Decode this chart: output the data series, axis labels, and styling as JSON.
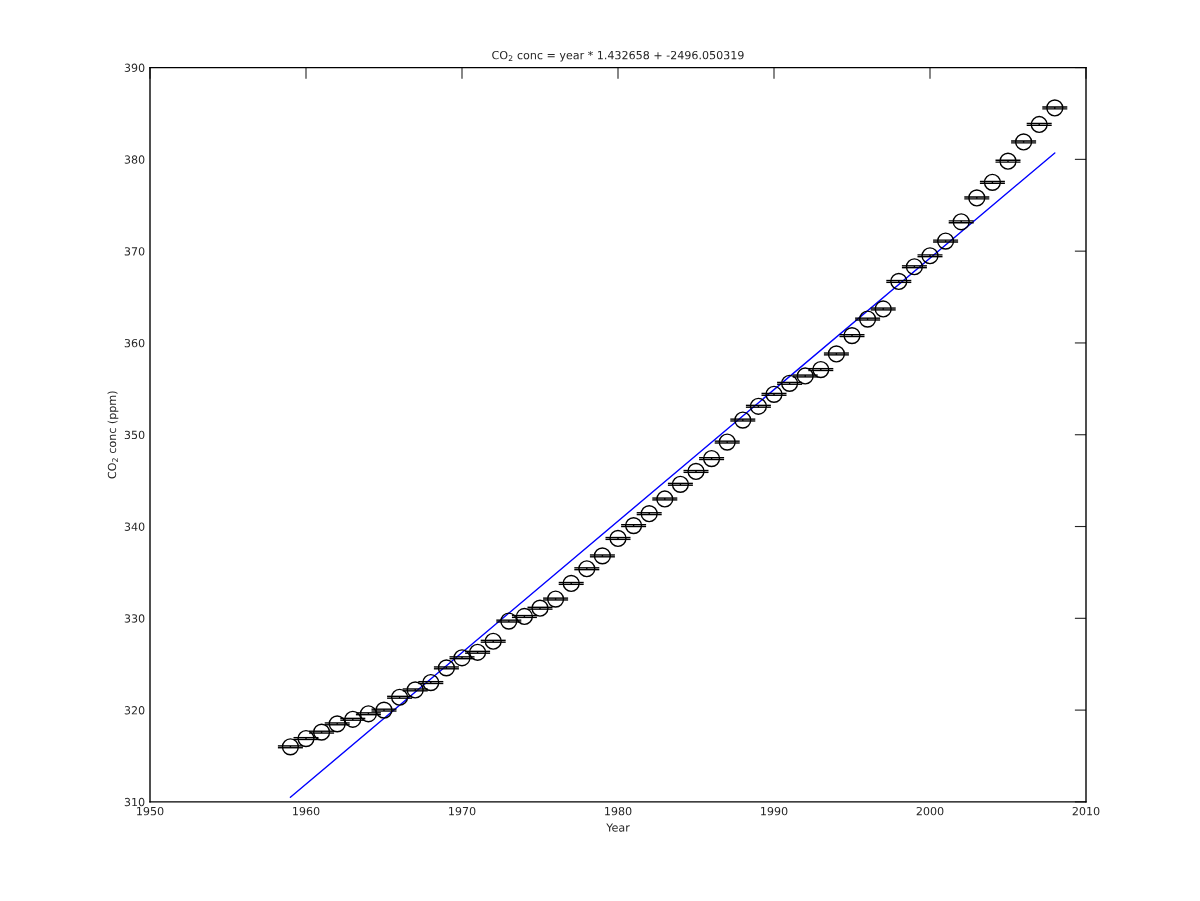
{
  "chart_data": {
    "type": "scatter",
    "title": "CO$_{2}$ conc = year * 1.432658 + -2496.050319",
    "xlabel": "Year",
    "ylabel": "CO$_{2}$ conc (ppm)",
    "xlim": [
      1950,
      2010
    ],
    "xticks": [
      1950,
      1960,
      1970,
      1980,
      1990,
      2000,
      2010
    ],
    "ylim": [
      310,
      390
    ],
    "yticks": [
      310,
      320,
      330,
      340,
      350,
      360,
      370,
      380,
      390
    ],
    "grid": false,
    "legend": false,
    "series": [
      {
        "color": "#000000",
        "marker": "circle",
        "x": [
          1959,
          1960,
          1961,
          1962,
          1963,
          1964,
          1965,
          1966,
          1967,
          1968,
          1969,
          1970,
          1971,
          1972,
          1973,
          1974,
          1975,
          1976,
          1977,
          1978,
          1979,
          1980,
          1981,
          1982,
          1983,
          1984,
          1985,
          1986,
          1987,
          1988,
          1989,
          1990,
          1991,
          1992,
          1993,
          1994,
          1995,
          1996,
          1997,
          1998,
          1999,
          2000,
          2001,
          2002,
          2003,
          2004,
          2005,
          2006,
          2007,
          2008
        ],
        "values": [
          316.0,
          316.9,
          317.6,
          318.5,
          319.0,
          319.6,
          320.0,
          321.4,
          322.2,
          323.0,
          324.6,
          325.7,
          326.3,
          327.5,
          329.7,
          330.2,
          331.1,
          332.1,
          333.8,
          335.4,
          336.8,
          338.7,
          340.1,
          341.4,
          343.0,
          344.6,
          346.0,
          347.4,
          349.2,
          351.6,
          353.1,
          354.4,
          355.6,
          356.4,
          357.1,
          358.8,
          360.8,
          362.6,
          363.7,
          366.7,
          368.3,
          369.5,
          371.1,
          373.2,
          375.8,
          377.5,
          379.8,
          381.9,
          383.8,
          385.6
        ],
        "errors": [
          0.1,
          0.1,
          0.1,
          0.1,
          0.1,
          0.1,
          0.1,
          0.1,
          0.1,
          0.1,
          0.1,
          0.1,
          0.1,
          0.1,
          0.1,
          0.1,
          0.1,
          0.1,
          0.1,
          0.1,
          0.1,
          0.1,
          0.1,
          0.1,
          0.1,
          0.1,
          0.1,
          0.1,
          0.1,
          0.1,
          0.1,
          0.1,
          0.1,
          0.1,
          0.1,
          0.1,
          0.1,
          0.1,
          0.1,
          0.1,
          0.1,
          0.1,
          0.1,
          0.1,
          0.1,
          0.1,
          0.1,
          0.1,
          0.1,
          0.1
        ]
      },
      {
        "type": "line",
        "color": "#0000ff",
        "marker": "none",
        "line_style": "solid",
        "x": [
          1959,
          2008
        ],
        "values": [
          310.5,
          380.7
        ]
      }
    ]
  }
}
